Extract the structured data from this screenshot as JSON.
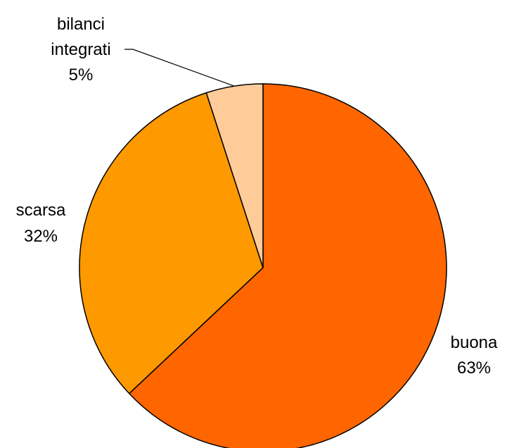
{
  "chart_data": {
    "type": "pie",
    "title": "",
    "slices": [
      {
        "label": "buona",
        "value": 63,
        "display": "63%",
        "color": "#FF6600"
      },
      {
        "label": "scarsa",
        "value": 32,
        "display": "32%",
        "color": "#FF9900"
      },
      {
        "label": "bilanci integrati",
        "label_lines": [
          "bilanci",
          "integrati"
        ],
        "value": 5,
        "display": "5%",
        "color": "#FFCC99"
      }
    ],
    "start_angle_deg": 0,
    "direction": "clockwise",
    "legend": "none"
  }
}
